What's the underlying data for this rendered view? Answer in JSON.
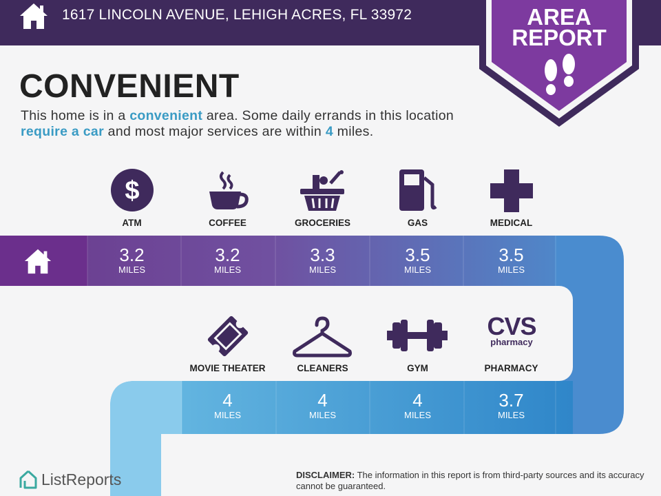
{
  "header": {
    "address": "1617 LINCOLN AVENUE, LEHIGH ACRES, FL 33972",
    "home_icon": "house-icon"
  },
  "badge": {
    "line1": "AREA",
    "line2": "REPORT",
    "icon": "footprints-icon"
  },
  "heading": "CONVENIENT",
  "description": {
    "p1": "This home is in a ",
    "h1": "convenient",
    "p2": " area. Some daily errands in this location ",
    "h2": "require a car",
    "p3": " and most major services are within ",
    "h3": "4",
    "p4": " miles."
  },
  "row1": [
    {
      "label": "ATM",
      "icon": "dollar-icon",
      "distance": "3.2",
      "unit": "MILES"
    },
    {
      "label": "COFFEE",
      "icon": "coffee-icon",
      "distance": "3.2",
      "unit": "MILES"
    },
    {
      "label": "GROCERIES",
      "icon": "grocery-basket-icon",
      "distance": "3.3",
      "unit": "MILES"
    },
    {
      "label": "GAS",
      "icon": "gas-pump-icon",
      "distance": "3.5",
      "unit": "MILES"
    },
    {
      "label": "MEDICAL",
      "icon": "medical-cross-icon",
      "distance": "3.5",
      "unit": "MILES"
    }
  ],
  "row2": [
    {
      "label": "MOVIE THEATER",
      "icon": "ticket-icon",
      "distance": "4",
      "unit": "MILES"
    },
    {
      "label": "CLEANERS",
      "icon": "hanger-icon",
      "distance": "4",
      "unit": "MILES"
    },
    {
      "label": "GYM",
      "icon": "dumbbell-icon",
      "distance": "4",
      "unit": "MILES"
    },
    {
      "label": "PHARMACY",
      "icon": "cvs-logo",
      "logo_text": "CVS",
      "logo_sub": "pharmacy",
      "distance": "3.7",
      "unit": "MILES"
    }
  ],
  "footer": {
    "brand": "ListReports",
    "disclaimer_label": "DISCLAIMER:",
    "disclaimer_text": " The information in this report is from third-party sources and its accuracy cannot be guaranteed."
  },
  "colors": {
    "header_bg": "#3f2a5c",
    "badge": "#7d3a9f",
    "accent_text": "#3a9bc4",
    "icon": "#3f2a5c"
  }
}
